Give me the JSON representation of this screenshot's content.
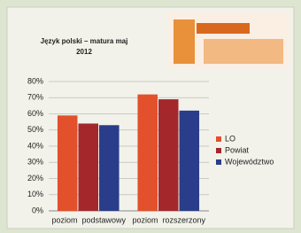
{
  "chart_data": {
    "type": "bar",
    "title": [
      "Język polski – matura maj",
      "2012"
    ],
    "categories": [
      "poziom  podstawowy",
      "poziom  rozszerzony"
    ],
    "series": [
      {
        "name": "LO",
        "color": "#e2502c",
        "values": [
          59,
          72
        ]
      },
      {
        "name": "Powiat",
        "color": "#a3272b",
        "values": [
          54,
          69
        ]
      },
      {
        "name": "Województwo",
        "color": "#2a3d8a",
        "values": [
          53,
          62
        ]
      }
    ],
    "ylim": [
      0,
      80
    ],
    "yticks": [
      {
        "value": 0,
        "label": "0%"
      },
      {
        "value": 10,
        "label": "10%"
      },
      {
        "value": 20,
        "label": "20%"
      },
      {
        "value": 30,
        "label": "30%"
      },
      {
        "value": 40,
        "label": "40%"
      },
      {
        "value": 50,
        "label": "50%"
      },
      {
        "value": 60,
        "label": "60%"
      },
      {
        "value": 70,
        "label": "70%"
      },
      {
        "value": 80,
        "label": "80%"
      }
    ],
    "grid": true,
    "legend": "right"
  }
}
